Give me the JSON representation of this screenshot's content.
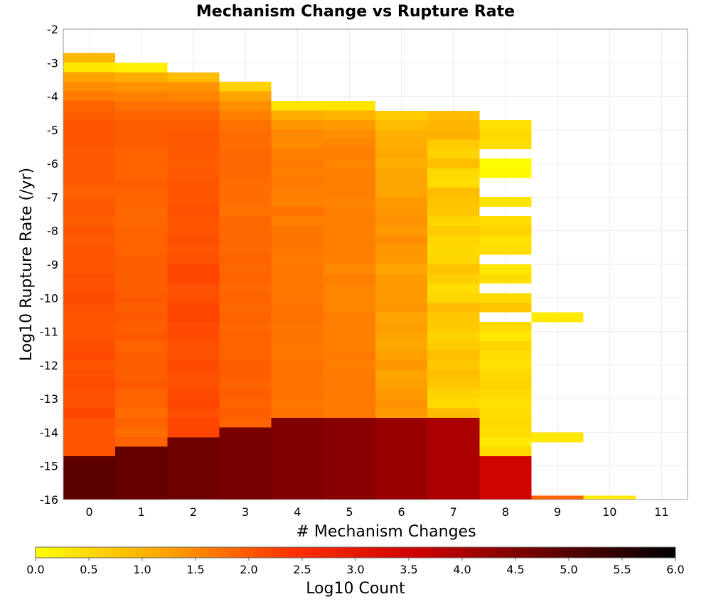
{
  "chart_data": {
    "type": "heatmap",
    "title": "Mechanism Change vs Rupture Rate",
    "xlabel": "# Mechanism Changes",
    "ylabel": "Log10 Rupture Rate (/yr)",
    "x_ticks": [
      "0",
      "1",
      "2",
      "3",
      "4",
      "5",
      "6",
      "7",
      "8",
      "9",
      "10",
      "11"
    ],
    "y_ticks": [
      "-2",
      "-3",
      "-4",
      "-5",
      "-6",
      "-7",
      "-8",
      "-9",
      "-10",
      "-11",
      "-12",
      "-13",
      "-14",
      "-15",
      "-16"
    ],
    "xlim": [
      -0.5,
      11.5
    ],
    "ylim": [
      -16,
      -2
    ],
    "y_bin_width": 0.2857,
    "grid": true,
    "colorbar": {
      "label": "Log10 Count",
      "range": [
        0.0,
        6.0
      ],
      "ticks": [
        "0.0",
        "0.5",
        "1.0",
        "1.5",
        "2.0",
        "2.5",
        "3.0",
        "3.5",
        "4.0",
        "4.5",
        "5.0",
        "5.5",
        "6.0"
      ],
      "colormap": [
        "#ffff00",
        "#ffa500",
        "#ff3300",
        "#cc0000",
        "#660000",
        "#000000"
      ],
      "placement": "bottom"
    },
    "columns": [
      {
        "x": 0,
        "top": -2.71,
        "values": [
          0.95,
          0.3,
          1.2,
          1.45,
          1.65,
          1.9,
          1.95,
          2.05,
          2.05,
          2.05,
          2.0,
          2.0,
          2.0,
          2.0,
          1.9,
          2.0,
          2.0,
          1.95,
          2.05,
          2.0,
          2.05,
          2.05,
          2.05,
          2.1,
          2.1,
          2.15,
          2.1,
          2.05,
          2.05,
          2.05,
          2.1,
          2.15,
          2.05,
          2.1,
          2.15,
          2.1,
          2.1,
          2.2,
          2.05,
          2.05,
          2.05,
          2.05,
          4.9
        ]
      },
      {
        "x": 1,
        "top": -3.0,
        "values": [
          0.2,
          1.1,
          1.4,
          1.6,
          1.75,
          1.9,
          1.95,
          1.95,
          1.95,
          1.9,
          1.9,
          1.9,
          1.95,
          1.9,
          1.9,
          1.85,
          1.85,
          1.9,
          1.9,
          1.9,
          1.95,
          1.95,
          1.95,
          1.95,
          2.0,
          1.95,
          2.0,
          1.95,
          2.0,
          1.9,
          1.95,
          1.95,
          1.95,
          2.0,
          1.9,
          1.9,
          1.8,
          1.9,
          1.8,
          1.9,
          4.8
        ]
      },
      {
        "x": 2,
        "top": -3.29,
        "values": [
          0.9,
          1.4,
          1.55,
          1.75,
          1.9,
          1.95,
          2.0,
          2.0,
          2.0,
          1.95,
          2.0,
          2.05,
          2.05,
          2.05,
          2.1,
          2.05,
          2.05,
          2.1,
          2.05,
          2.1,
          2.2,
          2.2,
          2.1,
          2.1,
          2.2,
          2.2,
          2.15,
          2.15,
          2.1,
          2.1,
          2.15,
          2.1,
          2.1,
          2.15,
          2.2,
          2.1,
          2.2,
          2.2,
          4.7
        ]
      },
      {
        "x": 3,
        "top": -3.57,
        "values": [
          0.6,
          1.2,
          1.45,
          1.6,
          1.75,
          1.8,
          1.8,
          1.85,
          1.85,
          1.85,
          1.8,
          1.8,
          1.8,
          1.75,
          1.85,
          1.85,
          1.85,
          1.85,
          1.9,
          1.85,
          1.9,
          1.85,
          1.9,
          1.85,
          1.9,
          1.85,
          1.9,
          1.9,
          1.9,
          1.95,
          1.95,
          1.9,
          1.95,
          1.9,
          1.95,
          1.9,
          4.6
        ]
      },
      {
        "x": 4,
        "top": -4.14,
        "values": [
          0.35,
          1.1,
          1.35,
          1.5,
          1.5,
          1.6,
          1.65,
          1.6,
          1.65,
          1.6,
          1.6,
          1.75,
          1.6,
          1.7,
          1.75,
          1.7,
          1.65,
          1.7,
          1.7,
          1.7,
          1.7,
          1.75,
          1.75,
          1.7,
          1.75,
          1.7,
          1.7,
          1.75,
          1.75,
          1.75,
          1.75,
          1.7,
          1.75,
          4.5
        ]
      },
      {
        "x": 5,
        "top": -4.14,
        "values": [
          0.35,
          1.0,
          1.3,
          1.45,
          1.55,
          1.6,
          1.55,
          1.6,
          1.6,
          1.6,
          1.55,
          1.6,
          1.6,
          1.6,
          1.6,
          1.6,
          1.6,
          1.5,
          1.6,
          1.55,
          1.55,
          1.55,
          1.6,
          1.6,
          1.6,
          1.6,
          1.65,
          1.6,
          1.65,
          1.65,
          1.65,
          1.65,
          1.65,
          4.4
        ]
      },
      {
        "x": 6,
        "top": -4.43,
        "values": [
          0.7,
          0.9,
          1.05,
          1.1,
          1.15,
          1.1,
          1.2,
          1.2,
          1.2,
          1.3,
          1.35,
          1.4,
          1.3,
          1.45,
          1.35,
          1.3,
          1.2,
          1.3,
          1.35,
          1.3,
          1.35,
          1.2,
          1.25,
          1.2,
          1.15,
          1.25,
          1.35,
          1.2,
          1.25,
          1.3,
          1.4,
          1.3,
          4.2
        ]
      },
      {
        "x": 7,
        "top": -4.43,
        "values": [
          0.9,
          1.0,
          1.05,
          0.7,
          0.6,
          0.85,
          0.5,
          0.45,
          0.9,
          0.8,
          0.75,
          0.55,
          0.7,
          0.55,
          0.5,
          0.55,
          0.8,
          0.65,
          0.45,
          0.55,
          0.9,
          0.75,
          0.7,
          0.6,
          0.7,
          0.85,
          0.75,
          0.85,
          0.75,
          0.6,
          0.5,
          0.9,
          4.0
        ]
      },
      {
        "x": 8,
        "top": -4.71,
        "values": [
          0.4,
          0.5,
          0.45,
          null,
          0.05,
          0.1,
          null,
          null,
          0.35,
          null,
          0.45,
          0.6,
          0.35,
          0.45,
          null,
          0.3,
          0.45,
          null,
          0.5,
          0.75,
          null,
          0.5,
          0.3,
          0.55,
          0.45,
          0.4,
          0.55,
          0.6,
          0.5,
          0.4,
          0.45,
          0.5,
          0.45,
          0.3,
          0.5,
          3.5
        ]
      },
      {
        "x": 9,
        "top": -16.0,
        "values": [
          1.9
        ]
      },
      {
        "x": 10,
        "top": -16.0,
        "values": [
          0.3
        ]
      }
    ],
    "extra_cells": [
      {
        "x": 9,
        "y_bottom": -10.71,
        "y_top": -10.43,
        "value": 0.3
      },
      {
        "x": 9,
        "y_bottom": -14.29,
        "y_top": -14.0,
        "value": 0.3
      }
    ]
  }
}
